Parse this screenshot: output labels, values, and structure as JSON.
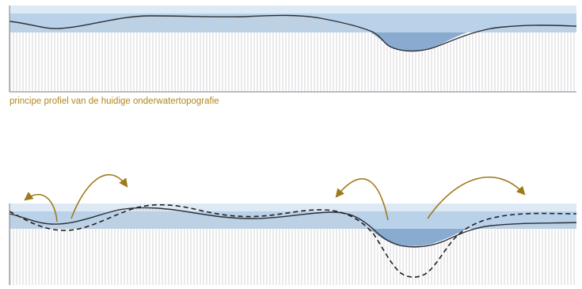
{
  "caption": {
    "text": "principe profiel van de huidige onderwatertopografie"
  },
  "colors": {
    "water_surface": "#dde9f4",
    "water_band": "#b9d2e9",
    "channel_water": "#8aabd0",
    "seabed_line": "#2b2f36",
    "hatch_line": "#c9ccd0",
    "frame_line": "#7d8288",
    "caption_text": "#b3861e",
    "arrow": "#9f7a1d",
    "dashed_profile": "#222222"
  },
  "panels": [
    {
      "name": "current-profile",
      "has_dashed_profile": false,
      "arrow_count": 0
    },
    {
      "name": "future-profile",
      "has_dashed_profile": true,
      "arrow_count": 4
    }
  ]
}
